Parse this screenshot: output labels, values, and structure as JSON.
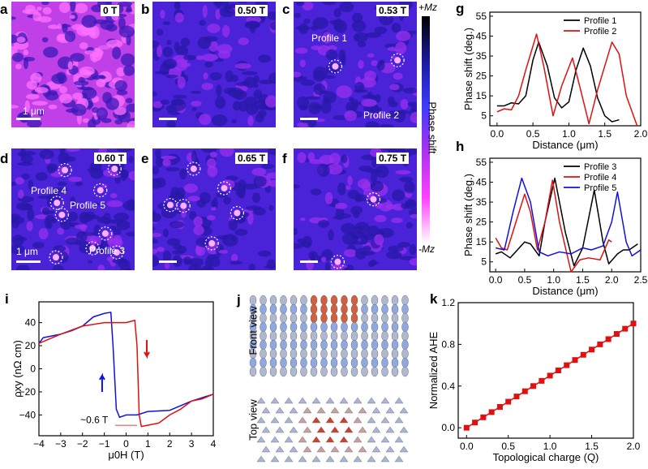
{
  "panels": {
    "a": {
      "label": "a",
      "field": "0 T",
      "scalebar": "1 μm"
    },
    "b": {
      "label": "b",
      "field": "0.50 T"
    },
    "c": {
      "label": "c",
      "field": "0.53 T",
      "profiles": [
        "Profile 1",
        "Profile 2"
      ]
    },
    "d": {
      "label": "d",
      "field": "0.60 T",
      "scalebar": "1 μm",
      "profiles": [
        "Profile 4",
        "Profile 5",
        "Profile 3"
      ]
    },
    "e": {
      "label": "e",
      "field": "0.65 T"
    },
    "f": {
      "label": "f",
      "field": "0.75 T"
    },
    "j": {
      "label": "j",
      "front": "Front view",
      "top": "Top view"
    }
  },
  "colorbar": {
    "top": "+Mz",
    "label": "Phase shift",
    "bottom": "-Mz",
    "colors": [
      "#000000",
      "#1a1aa0",
      "#3c3cff",
      "#b030f0",
      "#ff40ff",
      "#ffffff"
    ]
  },
  "chart_data": [
    {
      "id": "g",
      "label": "g",
      "type": "line",
      "xlabel": "Distance (μm)",
      "ylabel": "Phase shift (deg.)",
      "xlim": [
        -0.1,
        2.0
      ],
      "ylim": [
        0,
        57
      ],
      "xticks": [
        "0.0",
        "0.5",
        "1.0",
        "1.5",
        "2.0"
      ],
      "yticks": [
        "5",
        "15",
        "25",
        "35",
        "45",
        "55"
      ],
      "legend": "top-right",
      "series": [
        {
          "name": "Profile 1",
          "color": "#000000",
          "points": [
            [
              0,
              10
            ],
            [
              0.1,
              10
            ],
            [
              0.2,
              11.5
            ],
            [
              0.3,
              11
            ],
            [
              0.4,
              15
            ],
            [
              0.5,
              33
            ],
            [
              0.58,
              42
            ],
            [
              0.7,
              30
            ],
            [
              0.8,
              14
            ],
            [
              0.9,
              9
            ],
            [
              1.0,
              12
            ],
            [
              1.1,
              28
            ],
            [
              1.2,
              39
            ],
            [
              1.3,
              30
            ],
            [
              1.4,
              14
            ],
            [
              1.5,
              5
            ],
            [
              1.6,
              2
            ],
            [
              1.7,
              3
            ]
          ]
        },
        {
          "name": "Profile 2",
          "color": "#e01010",
          "points": [
            [
              0,
              7
            ],
            [
              0.1,
              8.5
            ],
            [
              0.2,
              8
            ],
            [
              0.3,
              15
            ],
            [
              0.4,
              28
            ],
            [
              0.55,
              46
            ],
            [
              0.65,
              30
            ],
            [
              0.78,
              5
            ],
            [
              0.9,
              20
            ],
            [
              1.05,
              34
            ],
            [
              1.15,
              20
            ],
            [
              1.28,
              1
            ],
            [
              1.4,
              18
            ],
            [
              1.6,
              42
            ],
            [
              1.7,
              36
            ],
            [
              1.8,
              15
            ],
            [
              1.95,
              0
            ]
          ]
        }
      ]
    },
    {
      "id": "h",
      "label": "h",
      "type": "line",
      "xlabel": "Distance (μm)",
      "ylabel": "Phase shift (deg.)",
      "xlim": [
        -0.1,
        2.5
      ],
      "ylim": [
        0,
        57
      ],
      "xticks": [
        "0.0",
        "0.5",
        "1.0",
        "1.5",
        "2.0",
        "2.5"
      ],
      "yticks": [
        "5",
        "15",
        "25",
        "35",
        "45",
        "55"
      ],
      "legend": "top-right",
      "series": [
        {
          "name": "Profile 3",
          "color": "#000000",
          "points": [
            [
              0,
              9
            ],
            [
              0.1,
              10
            ],
            [
              0.25,
              7
            ],
            [
              0.5,
              15
            ],
            [
              0.6,
              14
            ],
            [
              0.75,
              8
            ],
            [
              0.85,
              25
            ],
            [
              1.02,
              47
            ],
            [
              1.2,
              20
            ],
            [
              1.35,
              3
            ],
            [
              1.5,
              12
            ],
            [
              1.7,
              41
            ],
            [
              1.85,
              15
            ],
            [
              1.95,
              4
            ],
            [
              2.1,
              9
            ],
            [
              2.2,
              11
            ],
            [
              2.3,
              11
            ],
            [
              2.45,
              14
            ]
          ]
        },
        {
          "name": "Profile 4",
          "color": "#e01010",
          "points": [
            [
              0,
              17
            ],
            [
              0.1,
              12
            ],
            [
              0.2,
              11
            ],
            [
              0.35,
              25
            ],
            [
              0.5,
              39
            ],
            [
              0.6,
              30
            ],
            [
              0.72,
              11
            ],
            [
              0.85,
              25
            ],
            [
              0.98,
              46
            ],
            [
              1.1,
              25
            ],
            [
              1.3,
              0
            ],
            [
              1.45,
              6
            ],
            [
              1.6,
              7
            ],
            [
              1.8,
              6
            ],
            [
              1.95,
              16
            ],
            [
              2.0,
              15
            ]
          ]
        },
        {
          "name": "Profile 5",
          "color": "#1010e0",
          "points": [
            [
              0,
              12
            ],
            [
              0.15,
              11
            ],
            [
              0.3,
              30
            ],
            [
              0.45,
              47
            ],
            [
              0.6,
              35
            ],
            [
              0.75,
              10
            ],
            [
              0.9,
              8
            ],
            [
              1.1,
              10
            ],
            [
              1.3,
              9
            ],
            [
              1.5,
              12
            ],
            [
              1.65,
              11
            ],
            [
              1.85,
              13
            ],
            [
              2.0,
              25
            ],
            [
              2.1,
              40
            ],
            [
              2.25,
              15
            ],
            [
              2.35,
              8
            ],
            [
              2.5,
              11
            ]
          ]
        }
      ]
    },
    {
      "id": "i",
      "label": "i",
      "type": "line",
      "xlabel": "μ0H (T)",
      "ylabel": "ρxy (nΩ cm)",
      "xlim": [
        -4,
        4
      ],
      "ylim": [
        -58,
        58
      ],
      "xticks": [
        "-4",
        "-3",
        "-2",
        "-1",
        "0",
        "1",
        "2",
        "3",
        "4"
      ],
      "yticks": [
        "-40",
        "-20",
        "0",
        "20",
        "40"
      ],
      "annotation": "~0.6 T",
      "series": [
        {
          "color": "#1010e0",
          "points": [
            [
              -4,
              22
            ],
            [
              -3.8,
              27
            ],
            [
              -3,
              30
            ],
            [
              -2.5,
              33
            ],
            [
              -2,
              37
            ],
            [
              -1.5,
              45
            ],
            [
              -1,
              48
            ],
            [
              -0.7,
              49
            ],
            [
              -0.6,
              20
            ],
            [
              -0.45,
              -35
            ],
            [
              -0.3,
              -42
            ],
            [
              0,
              -40
            ],
            [
              0.5,
              -40
            ],
            [
              1,
              -37
            ],
            [
              2,
              -36
            ],
            [
              3,
              -28
            ],
            [
              4,
              -22
            ]
          ]
        },
        {
          "color": "#e01010",
          "points": [
            [
              -4,
              22
            ],
            [
              -3,
              30
            ],
            [
              -2,
              37
            ],
            [
              -1,
              40
            ],
            [
              0,
              40
            ],
            [
              0.4,
              42
            ],
            [
              0.5,
              20
            ],
            [
              0.6,
              -40
            ],
            [
              0.7,
              -50
            ],
            [
              1.5,
              -47
            ],
            [
              2,
              -40
            ],
            [
              2.5,
              -35
            ],
            [
              3,
              -28
            ],
            [
              3.5,
              -26
            ],
            [
              4,
              -22
            ]
          ]
        }
      ]
    },
    {
      "id": "k",
      "label": "k",
      "type": "line",
      "xlabel": "Topological charge (Q)",
      "ylabel": "Normalized AHE",
      "xlim": [
        -0.1,
        2.0
      ],
      "ylim": [
        -0.1,
        1.2
      ],
      "xticks": [
        "0.0",
        "0.5",
        "1.0",
        "1.5",
        "2.0"
      ],
      "yticks": [
        "0.0",
        "0.4",
        "0.8",
        "1.2"
      ],
      "series": [
        {
          "color": "#e01010",
          "points": [
            [
              0,
              0
            ],
            [
              0.1,
              0.05
            ],
            [
              0.2,
              0.1
            ],
            [
              0.3,
              0.15
            ],
            [
              0.4,
              0.2
            ],
            [
              0.5,
              0.25
            ],
            [
              0.6,
              0.3
            ],
            [
              0.7,
              0.35
            ],
            [
              0.8,
              0.4
            ],
            [
              0.9,
              0.45
            ],
            [
              1.0,
              0.5
            ],
            [
              1.1,
              0.55
            ],
            [
              1.2,
              0.6
            ],
            [
              1.3,
              0.65
            ],
            [
              1.4,
              0.7
            ],
            [
              1.5,
              0.75
            ],
            [
              1.6,
              0.8
            ],
            [
              1.7,
              0.85
            ],
            [
              1.8,
              0.9
            ],
            [
              1.9,
              0.95
            ],
            [
              2.0,
              1.0
            ]
          ]
        }
      ]
    }
  ]
}
